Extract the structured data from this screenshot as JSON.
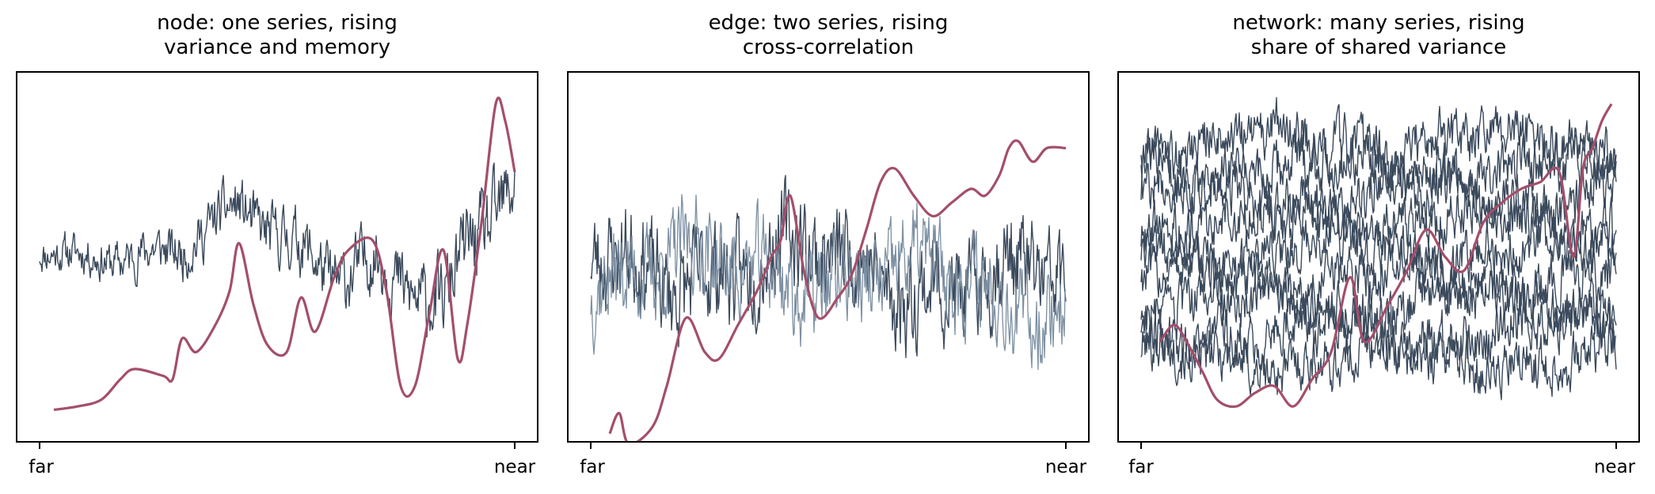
{
  "colors": {
    "dark": "#3b4a5c",
    "light": "#7d90a3",
    "accent": "#a34f6b",
    "frame": "#000000"
  },
  "chart_data": [
    {
      "type": "line",
      "title_lines": [
        "node: one series, rising",
        "variance and memory"
      ],
      "x_ticks": [
        "far",
        "near"
      ],
      "xlim": [
        0,
        1
      ],
      "ylim": [
        0,
        1
      ],
      "grid": false,
      "series": [
        {
          "color": "dark",
          "kind": "noise",
          "baseline_keys": [
            [
              0,
              0.52
            ],
            [
              0.15,
              0.52
            ],
            [
              0.3,
              0.5
            ],
            [
              0.42,
              0.62
            ],
            [
              0.55,
              0.55
            ],
            [
              0.62,
              0.48
            ],
            [
              0.7,
              0.5
            ],
            [
              0.78,
              0.38
            ],
            [
              0.85,
              0.3
            ],
            [
              0.9,
              0.5
            ],
            [
              1.0,
              0.72
            ]
          ],
          "amp_keys": [
            [
              0,
              0.04
            ],
            [
              0.5,
              0.07
            ],
            [
              1.0,
              0.1
            ]
          ],
          "seed": 11
        },
        {
          "color": "accent",
          "kind": "smooth",
          "points": [
            [
              0.03,
              0.05
            ],
            [
              0.08,
              0.06
            ],
            [
              0.13,
              0.08
            ],
            [
              0.17,
              0.14
            ],
            [
              0.2,
              0.17
            ],
            [
              0.26,
              0.15
            ],
            [
              0.28,
              0.14
            ],
            [
              0.3,
              0.26
            ],
            [
              0.33,
              0.22
            ],
            [
              0.37,
              0.3
            ],
            [
              0.4,
              0.4
            ],
            [
              0.42,
              0.54
            ],
            [
              0.45,
              0.36
            ],
            [
              0.48,
              0.24
            ],
            [
              0.52,
              0.22
            ],
            [
              0.55,
              0.38
            ],
            [
              0.58,
              0.28
            ],
            [
              0.62,
              0.44
            ],
            [
              0.65,
              0.52
            ],
            [
              0.7,
              0.55
            ],
            [
              0.73,
              0.4
            ],
            [
              0.76,
              0.12
            ],
            [
              0.79,
              0.12
            ],
            [
              0.82,
              0.33
            ],
            [
              0.85,
              0.52
            ],
            [
              0.88,
              0.2
            ],
            [
              0.9,
              0.3
            ],
            [
              0.93,
              0.6
            ],
            [
              0.96,
              0.95
            ],
            [
              0.98,
              0.9
            ],
            [
              1.0,
              0.75
            ]
          ]
        }
      ]
    },
    {
      "type": "line",
      "title_lines": [
        "edge: two series, rising",
        "cross-correlation"
      ],
      "x_ticks": [
        "far",
        "near"
      ],
      "xlim": [
        0,
        1
      ],
      "ylim": [
        0,
        1
      ],
      "grid": false,
      "series": [
        {
          "color": "dark",
          "kind": "noise",
          "baseline_keys": [
            [
              0,
              0.48
            ],
            [
              0.5,
              0.48
            ],
            [
              1.0,
              0.4
            ]
          ],
          "amp_keys": [
            [
              0,
              0.12
            ],
            [
              1.0,
              0.12
            ]
          ],
          "seed": 23
        },
        {
          "color": "light",
          "kind": "noise",
          "baseline_keys": [
            [
              0,
              0.46
            ],
            [
              0.5,
              0.46
            ],
            [
              1.0,
              0.38
            ]
          ],
          "amp_keys": [
            [
              0,
              0.11
            ],
            [
              1.0,
              0.11
            ]
          ],
          "seed": 37
        },
        {
          "color": "accent",
          "kind": "smooth",
          "points": [
            [
              0.04,
              -0.02
            ],
            [
              0.06,
              0.04
            ],
            [
              0.08,
              -0.05
            ],
            [
              0.13,
              0.0
            ],
            [
              0.16,
              0.12
            ],
            [
              0.2,
              0.32
            ],
            [
              0.24,
              0.22
            ],
            [
              0.27,
              0.2
            ],
            [
              0.31,
              0.3
            ],
            [
              0.35,
              0.4
            ],
            [
              0.38,
              0.5
            ],
            [
              0.4,
              0.55
            ],
            [
              0.42,
              0.68
            ],
            [
              0.45,
              0.45
            ],
            [
              0.48,
              0.32
            ],
            [
              0.52,
              0.38
            ],
            [
              0.55,
              0.45
            ],
            [
              0.58,
              0.58
            ],
            [
              0.61,
              0.72
            ],
            [
              0.64,
              0.76
            ],
            [
              0.68,
              0.68
            ],
            [
              0.72,
              0.62
            ],
            [
              0.76,
              0.66
            ],
            [
              0.8,
              0.7
            ],
            [
              0.83,
              0.68
            ],
            [
              0.86,
              0.74
            ],
            [
              0.88,
              0.82
            ],
            [
              0.9,
              0.84
            ],
            [
              0.93,
              0.78
            ],
            [
              0.96,
              0.82
            ],
            [
              1.0,
              0.82
            ]
          ]
        }
      ]
    },
    {
      "type": "line",
      "title_lines": [
        "network: many series, rising",
        "share of shared variance"
      ],
      "x_ticks": [
        "far",
        "near"
      ],
      "xlim": [
        0,
        1
      ],
      "ylim": [
        0,
        1
      ],
      "grid": false,
      "series": [
        {
          "color": "dark",
          "kind": "noise",
          "baseline_keys": [
            [
              0,
              0.2
            ],
            [
              1,
              0.2
            ]
          ],
          "amp_keys": [
            [
              0,
              0.06
            ],
            [
              1,
              0.06
            ]
          ],
          "seed": 101
        },
        {
          "color": "dark",
          "kind": "noise",
          "baseline_keys": [
            [
              0,
              0.28
            ],
            [
              1,
              0.28
            ]
          ],
          "amp_keys": [
            [
              0,
              0.06
            ],
            [
              1,
              0.06
            ]
          ],
          "seed": 102
        },
        {
          "color": "dark",
          "kind": "noise",
          "baseline_keys": [
            [
              0,
              0.36
            ],
            [
              1,
              0.36
            ]
          ],
          "amp_keys": [
            [
              0,
              0.06
            ],
            [
              1,
              0.06
            ]
          ],
          "seed": 103
        },
        {
          "color": "dark",
          "kind": "noise",
          "baseline_keys": [
            [
              0,
              0.44
            ],
            [
              1,
              0.44
            ]
          ],
          "amp_keys": [
            [
              0,
              0.06
            ],
            [
              1,
              0.06
            ]
          ],
          "seed": 104
        },
        {
          "color": "dark",
          "kind": "noise",
          "baseline_keys": [
            [
              0,
              0.52
            ],
            [
              1,
              0.52
            ]
          ],
          "amp_keys": [
            [
              0,
              0.06
            ],
            [
              1,
              0.06
            ]
          ],
          "seed": 105
        },
        {
          "color": "dark",
          "kind": "noise",
          "baseline_keys": [
            [
              0,
              0.6
            ],
            [
              1,
              0.6
            ]
          ],
          "amp_keys": [
            [
              0,
              0.06
            ],
            [
              1,
              0.06
            ]
          ],
          "seed": 106
        },
        {
          "color": "dark",
          "kind": "noise",
          "baseline_keys": [
            [
              0,
              0.68
            ],
            [
              1,
              0.68
            ]
          ],
          "amp_keys": [
            [
              0,
              0.06
            ],
            [
              1,
              0.06
            ]
          ],
          "seed": 107
        },
        {
          "color": "dark",
          "kind": "noise",
          "baseline_keys": [
            [
              0,
              0.76
            ],
            [
              1,
              0.76
            ]
          ],
          "amp_keys": [
            [
              0,
              0.06
            ],
            [
              1,
              0.06
            ]
          ],
          "seed": 108
        },
        {
          "color": "dark",
          "kind": "noise",
          "baseline_keys": [
            [
              0,
              0.84
            ],
            [
              1,
              0.84
            ]
          ],
          "amp_keys": [
            [
              0,
              0.06
            ],
            [
              1,
              0.06
            ]
          ],
          "seed": 109
        },
        {
          "color": "accent",
          "kind": "smooth",
          "points": [
            [
              0.04,
              0.25
            ],
            [
              0.07,
              0.3
            ],
            [
              0.1,
              0.24
            ],
            [
              0.13,
              0.16
            ],
            [
              0.16,
              0.08
            ],
            [
              0.2,
              0.06
            ],
            [
              0.24,
              0.1
            ],
            [
              0.28,
              0.12
            ],
            [
              0.32,
              0.06
            ],
            [
              0.36,
              0.14
            ],
            [
              0.4,
              0.22
            ],
            [
              0.44,
              0.44
            ],
            [
              0.47,
              0.25
            ],
            [
              0.52,
              0.36
            ],
            [
              0.56,
              0.46
            ],
            [
              0.6,
              0.58
            ],
            [
              0.64,
              0.5
            ],
            [
              0.68,
              0.46
            ],
            [
              0.72,
              0.6
            ],
            [
              0.76,
              0.66
            ],
            [
              0.8,
              0.7
            ],
            [
              0.84,
              0.72
            ],
            [
              0.88,
              0.75
            ],
            [
              0.91,
              0.5
            ],
            [
              0.93,
              0.76
            ],
            [
              0.95,
              0.82
            ],
            [
              0.97,
              0.9
            ],
            [
              0.99,
              0.95
            ]
          ]
        }
      ]
    }
  ]
}
